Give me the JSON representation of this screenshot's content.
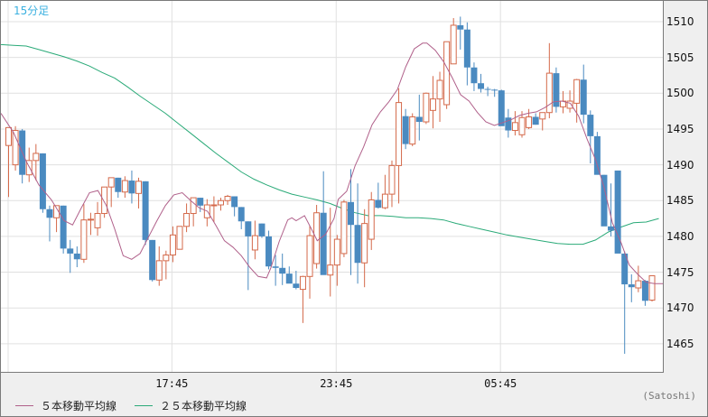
{
  "header": {
    "interval_label": "15分足"
  },
  "footer": {
    "legend": [
      {
        "label": "５本移動平均線",
        "color": "#b0608a"
      },
      {
        "label": "２５本移動平均線",
        "color": "#2aaa78"
      }
    ],
    "source": "(Satoshi)"
  },
  "colors": {
    "up": "#d4694a",
    "down": "#4a8ac0",
    "ma5": "#b0608a",
    "ma25": "#2aaa78",
    "grid": "#e0e0e0",
    "interval_label": "#3ab0e0"
  },
  "chart_data": {
    "type": "candlestick",
    "title": "15分足",
    "xlabel": "",
    "ylabel": "",
    "ylim": [
      1462.3,
      1513.0
    ],
    "y_ticks": [
      1510,
      1505,
      1500,
      1495,
      1490,
      1485,
      1480,
      1475,
      1470,
      1465
    ],
    "x_ticks": [
      {
        "label": "17:45",
        "index": 23
      },
      {
        "label": "23:45",
        "index": 47
      },
      {
        "label": "05:45",
        "index": 71
      }
    ],
    "grid": true,
    "legend_position": "bottom-left",
    "candles": [
      {
        "o": 1492.7,
        "h": 1494.2,
        "l": 1485.5,
        "c": 1495.2
      },
      {
        "o": 1490.0,
        "h": 1495.4,
        "l": 1489.2,
        "c": 1494.8
      },
      {
        "o": 1494.8,
        "h": 1495.0,
        "l": 1487.4,
        "c": 1488.6
      },
      {
        "o": 1488.6,
        "h": 1492.4,
        "l": 1487.6,
        "c": 1490.6
      },
      {
        "o": 1490.6,
        "h": 1492.9,
        "l": 1487.8,
        "c": 1491.6
      },
      {
        "o": 1491.6,
        "h": 1491.6,
        "l": 1483.3,
        "c": 1483.8
      },
      {
        "o": 1483.8,
        "h": 1484.3,
        "l": 1479.3,
        "c": 1482.6
      },
      {
        "o": 1482.6,
        "h": 1484.1,
        "l": 1480.6,
        "c": 1484.3
      },
      {
        "o": 1484.3,
        "h": 1484.3,
        "l": 1477.6,
        "c": 1478.3
      },
      {
        "o": 1478.3,
        "h": 1479.5,
        "l": 1474.9,
        "c": 1477.6
      },
      {
        "o": 1477.6,
        "h": 1478.6,
        "l": 1475.7,
        "c": 1476.8
      },
      {
        "o": 1476.8,
        "h": 1484.5,
        "l": 1476.3,
        "c": 1482.3
      },
      {
        "o": 1482.3,
        "h": 1483.3,
        "l": 1480.2,
        "c": 1482.4
      },
      {
        "o": 1481.2,
        "h": 1484.8,
        "l": 1480.1,
        "c": 1483.2
      },
      {
        "o": 1483.2,
        "h": 1486.5,
        "l": 1482.6,
        "c": 1486.9
      },
      {
        "o": 1486.9,
        "h": 1488.2,
        "l": 1484.1,
        "c": 1488.2
      },
      {
        "o": 1488.2,
        "h": 1488.2,
        "l": 1485.4,
        "c": 1486.2
      },
      {
        "o": 1486.2,
        "h": 1488.4,
        "l": 1485.4,
        "c": 1487.8
      },
      {
        "o": 1487.8,
        "h": 1489.2,
        "l": 1484.6,
        "c": 1486.0
      },
      {
        "o": 1486.0,
        "h": 1488.2,
        "l": 1483.9,
        "c": 1487.7
      },
      {
        "o": 1487.7,
        "h": 1487.7,
        "l": 1478.8,
        "c": 1479.5
      },
      {
        "o": 1479.5,
        "h": 1479.5,
        "l": 1473.7,
        "c": 1473.9
      },
      {
        "o": 1473.9,
        "h": 1478.6,
        "l": 1473.1,
        "c": 1476.6
      },
      {
        "o": 1476.6,
        "h": 1478.0,
        "l": 1474.0,
        "c": 1477.4
      },
      {
        "o": 1477.4,
        "h": 1481.4,
        "l": 1476.4,
        "c": 1480.2
      },
      {
        "o": 1478.2,
        "h": 1481.4,
        "l": 1478.2,
        "c": 1481.4
      },
      {
        "o": 1481.4,
        "h": 1484.6,
        "l": 1480.6,
        "c": 1483.2
      },
      {
        "o": 1483.2,
        "h": 1485.4,
        "l": 1481.4,
        "c": 1485.4
      },
      {
        "o": 1485.4,
        "h": 1485.4,
        "l": 1483.4,
        "c": 1484.3
      },
      {
        "o": 1482.6,
        "h": 1485.2,
        "l": 1481.4,
        "c": 1484.4
      },
      {
        "o": 1484.4,
        "h": 1485.6,
        "l": 1482.0,
        "c": 1484.4
      },
      {
        "o": 1484.4,
        "h": 1485.4,
        "l": 1483.6,
        "c": 1485.0
      },
      {
        "o": 1485.0,
        "h": 1485.8,
        "l": 1484.4,
        "c": 1485.6
      },
      {
        "o": 1485.6,
        "h": 1485.6,
        "l": 1482.8,
        "c": 1484.1
      },
      {
        "o": 1484.1,
        "h": 1484.1,
        "l": 1481.0,
        "c": 1482.1
      },
      {
        "o": 1482.1,
        "h": 1482.1,
        "l": 1472.5,
        "c": 1480.0
      },
      {
        "o": 1478.1,
        "h": 1482.2,
        "l": 1476.8,
        "c": 1480.1
      },
      {
        "o": 1481.8,
        "h": 1481.8,
        "l": 1479.8,
        "c": 1480.0
      },
      {
        "o": 1480.0,
        "h": 1480.8,
        "l": 1475.4,
        "c": 1475.8
      },
      {
        "o": 1475.8,
        "h": 1477.4,
        "l": 1473.1,
        "c": 1475.6
      },
      {
        "o": 1475.6,
        "h": 1477.6,
        "l": 1473.2,
        "c": 1474.8
      },
      {
        "o": 1474.8,
        "h": 1475.8,
        "l": 1473.6,
        "c": 1473.4
      },
      {
        "o": 1473.4,
        "h": 1475.2,
        "l": 1472.6,
        "c": 1472.8
      },
      {
        "o": 1472.6,
        "h": 1474.5,
        "l": 1467.9,
        "c": 1474.4
      },
      {
        "o": 1474.4,
        "h": 1481.5,
        "l": 1471.3,
        "c": 1480.1
      },
      {
        "o": 1476.2,
        "h": 1484.4,
        "l": 1475.5,
        "c": 1483.3
      },
      {
        "o": 1483.3,
        "h": 1489.1,
        "l": 1476.3,
        "c": 1474.6
      },
      {
        "o": 1474.6,
        "h": 1484.0,
        "l": 1471.6,
        "c": 1476.0
      },
      {
        "o": 1476.0,
        "h": 1480.2,
        "l": 1473.1,
        "c": 1479.6
      },
      {
        "o": 1477.6,
        "h": 1485.1,
        "l": 1477.1,
        "c": 1484.8
      },
      {
        "o": 1484.8,
        "h": 1489.4,
        "l": 1474.6,
        "c": 1481.6
      },
      {
        "o": 1481.6,
        "h": 1487.4,
        "l": 1473.4,
        "c": 1476.3
      },
      {
        "o": 1476.3,
        "h": 1483.8,
        "l": 1472.9,
        "c": 1481.8
      },
      {
        "o": 1479.6,
        "h": 1486.2,
        "l": 1478.1,
        "c": 1485.1
      },
      {
        "o": 1485.1,
        "h": 1487.5,
        "l": 1483.9,
        "c": 1484.0
      },
      {
        "o": 1484.0,
        "h": 1488.6,
        "l": 1483.8,
        "c": 1485.9
      },
      {
        "o": 1485.9,
        "h": 1490.6,
        "l": 1484.1,
        "c": 1489.9
      },
      {
        "o": 1489.9,
        "h": 1500.7,
        "l": 1484.6,
        "c": 1498.7
      },
      {
        "o": 1496.8,
        "h": 1497.8,
        "l": 1492.2,
        "c": 1492.9
      },
      {
        "o": 1492.9,
        "h": 1497.2,
        "l": 1492.6,
        "c": 1496.7
      },
      {
        "o": 1496.7,
        "h": 1499.8,
        "l": 1493.4,
        "c": 1496.0
      },
      {
        "o": 1496.0,
        "h": 1500.1,
        "l": 1495.7,
        "c": 1500.0
      },
      {
        "o": 1497.6,
        "h": 1502.4,
        "l": 1495.1,
        "c": 1499.2
      },
      {
        "o": 1499.2,
        "h": 1503.0,
        "l": 1496.0,
        "c": 1501.8
      },
      {
        "o": 1498.4,
        "h": 1506.6,
        "l": 1497.8,
        "c": 1507.2
      },
      {
        "o": 1504.1,
        "h": 1510.5,
        "l": 1505.1,
        "c": 1509.5
      },
      {
        "o": 1509.5,
        "h": 1510.7,
        "l": 1506.1,
        "c": 1508.9
      },
      {
        "o": 1508.9,
        "h": 1509.9,
        "l": 1501.1,
        "c": 1503.6
      },
      {
        "o": 1503.6,
        "h": 1504.3,
        "l": 1500.3,
        "c": 1501.4
      },
      {
        "o": 1501.4,
        "h": 1502.7,
        "l": 1500.1,
        "c": 1500.6
      },
      {
        "o": 1500.6,
        "h": 1500.9,
        "l": 1499.6,
        "c": 1500.5
      },
      {
        "o": 1500.5,
        "h": 1500.6,
        "l": 1499.5,
        "c": 1500.4
      },
      {
        "o": 1500.4,
        "h": 1500.5,
        "l": 1499.3,
        "c": 1495.4
      },
      {
        "o": 1496.6,
        "h": 1497.8,
        "l": 1493.8,
        "c": 1494.8
      },
      {
        "o": 1494.8,
        "h": 1497.5,
        "l": 1494.1,
        "c": 1495.9
      },
      {
        "o": 1494.2,
        "h": 1497.5,
        "l": 1493.8,
        "c": 1496.6
      },
      {
        "o": 1495.2,
        "h": 1497.8,
        "l": 1495.0,
        "c": 1496.7
      },
      {
        "o": 1496.7,
        "h": 1497.2,
        "l": 1495.6,
        "c": 1495.6
      },
      {
        "o": 1496.4,
        "h": 1496.9,
        "l": 1494.8,
        "c": 1497.3
      },
      {
        "o": 1497.3,
        "h": 1507.0,
        "l": 1496.5,
        "c": 1502.8
      },
      {
        "o": 1502.8,
        "h": 1503.6,
        "l": 1497.3,
        "c": 1498.1
      },
      {
        "o": 1498.1,
        "h": 1500.3,
        "l": 1497.2,
        "c": 1498.9
      },
      {
        "o": 1497.9,
        "h": 1500.4,
        "l": 1497.3,
        "c": 1498.9
      },
      {
        "o": 1498.6,
        "h": 1502.0,
        "l": 1495.9,
        "c": 1501.9
      },
      {
        "o": 1501.9,
        "h": 1504.0,
        "l": 1495.8,
        "c": 1497.0
      },
      {
        "o": 1497.0,
        "h": 1497.6,
        "l": 1490.2,
        "c": 1494.0
      },
      {
        "o": 1494.0,
        "h": 1494.6,
        "l": 1489.6,
        "c": 1488.6
      },
      {
        "o": 1488.6,
        "h": 1488.6,
        "l": 1486.0,
        "c": 1481.4
      },
      {
        "o": 1481.4,
        "h": 1487.4,
        "l": 1480.0,
        "c": 1480.8
      },
      {
        "o": 1489.2,
        "h": 1489.2,
        "l": 1481.6,
        "c": 1477.6
      },
      {
        "o": 1477.6,
        "h": 1477.9,
        "l": 1463.6,
        "c": 1473.3
      },
      {
        "o": 1473.3,
        "h": 1474.7,
        "l": 1470.8,
        "c": 1472.9
      },
      {
        "o": 1472.8,
        "h": 1475.9,
        "l": 1472.2,
        "c": 1473.8
      },
      {
        "o": 1473.8,
        "h": 1473.9,
        "l": 1470.3,
        "c": 1471.0
      },
      {
        "o": 1471.1,
        "h": 1474.4,
        "l": 1470.9,
        "c": 1474.5
      }
    ],
    "series": [
      {
        "name": "５本移動平均線",
        "color": "#b0608a",
        "points": [
          [
            0,
            1497.2
          ],
          [
            3,
            1494.5
          ],
          [
            6,
            1490.5
          ],
          [
            9,
            1487.2
          ],
          [
            12,
            1485.1
          ],
          [
            15,
            1482.2
          ],
          [
            17,
            1481.6
          ],
          [
            19,
            1483.9
          ],
          [
            21,
            1486.1
          ],
          [
            23,
            1486.4
          ],
          [
            25,
            1484.3
          ],
          [
            27,
            1481.0
          ],
          [
            29,
            1477.3
          ],
          [
            31,
            1476.8
          ],
          [
            33,
            1477.6
          ],
          [
            35,
            1479.9
          ],
          [
            37,
            1482.2
          ],
          [
            39,
            1484.3
          ],
          [
            41,
            1485.8
          ],
          [
            43,
            1486.1
          ],
          [
            45,
            1485.0
          ],
          [
            47,
            1484.0
          ],
          [
            49,
            1483.5
          ],
          [
            51,
            1481.5
          ],
          [
            53,
            1479.4
          ],
          [
            55,
            1478.5
          ],
          [
            57,
            1477.3
          ],
          [
            59,
            1475.7
          ],
          [
            61,
            1474.4
          ],
          [
            63,
            1474.2
          ],
          [
            64,
            1475.6
          ],
          [
            66,
            1479.3
          ],
          [
            68,
            1482.3
          ],
          [
            69,
            1482.6
          ],
          [
            70,
            1482.2
          ],
          [
            72,
            1482.9
          ],
          [
            74,
            1480.6
          ],
          [
            75,
            1479.4
          ],
          [
            77,
            1480.3
          ],
          [
            79,
            1482.5
          ],
          [
            80,
            1485.2
          ],
          [
            82,
            1486.3
          ],
          [
            84,
            1489.9
          ],
          [
            86,
            1492.5
          ],
          [
            88,
            1495.6
          ],
          [
            90,
            1497.4
          ],
          [
            92,
            1498.8
          ],
          [
            94,
            1500.5
          ],
          [
            96,
            1503.7
          ],
          [
            98,
            1506.2
          ],
          [
            100,
            1507.0
          ],
          [
            101,
            1507.0
          ],
          [
            103,
            1506.0
          ],
          [
            105,
            1504.4
          ],
          [
            107,
            1502.2
          ],
          [
            109,
            1499.8
          ],
          [
            111,
            1498.9
          ],
          [
            113,
            1497.3
          ],
          [
            115,
            1496.0
          ],
          [
            117,
            1495.5
          ],
          [
            119,
            1495.9
          ],
          [
            121,
            1496.3
          ],
          [
            123,
            1496.9
          ],
          [
            125,
            1497.2
          ],
          [
            127,
            1497.4
          ],
          [
            129,
            1498.0
          ],
          [
            131,
            1498.8
          ],
          [
            133,
            1498.9
          ],
          [
            135,
            1498.6
          ],
          [
            137,
            1496.8
          ],
          [
            139,
            1493.6
          ],
          [
            141,
            1490.7
          ],
          [
            143,
            1486.9
          ],
          [
            145,
            1481.9
          ],
          [
            147,
            1479.2
          ],
          [
            149,
            1476.0
          ],
          [
            151,
            1474.7
          ],
          [
            153,
            1473.6
          ],
          [
            155,
            1473.4
          ],
          [
            157,
            1473.4
          ]
        ]
      },
      {
        "name": "２５本移動平均線",
        "color": "#2aaa78",
        "points": [
          [
            0,
            1506.8
          ],
          [
            3,
            1506.7
          ],
          [
            6,
            1506.6
          ],
          [
            9,
            1506.1
          ],
          [
            12,
            1505.6
          ],
          [
            15,
            1505.1
          ],
          [
            18,
            1504.5
          ],
          [
            21,
            1503.8
          ],
          [
            24,
            1502.9
          ],
          [
            27,
            1502.1
          ],
          [
            30,
            1500.9
          ],
          [
            33,
            1499.6
          ],
          [
            36,
            1498.4
          ],
          [
            39,
            1497.2
          ],
          [
            42,
            1495.8
          ],
          [
            45,
            1494.4
          ],
          [
            48,
            1493.0
          ],
          [
            51,
            1491.6
          ],
          [
            54,
            1490.3
          ],
          [
            57,
            1489.0
          ],
          [
            60,
            1488.0
          ],
          [
            63,
            1487.2
          ],
          [
            66,
            1486.5
          ],
          [
            69,
            1485.9
          ],
          [
            72,
            1485.5
          ],
          [
            75,
            1485.1
          ],
          [
            78,
            1484.6
          ],
          [
            81,
            1483.9
          ],
          [
            84,
            1483.3
          ],
          [
            87,
            1482.9
          ],
          [
            90,
            1482.9
          ],
          [
            93,
            1482.8
          ],
          [
            96,
            1482.6
          ],
          [
            99,
            1482.6
          ],
          [
            102,
            1482.5
          ],
          [
            105,
            1482.3
          ],
          [
            108,
            1481.8
          ],
          [
            111,
            1481.4
          ],
          [
            114,
            1481.0
          ],
          [
            117,
            1480.6
          ],
          [
            120,
            1480.2
          ],
          [
            123,
            1479.9
          ],
          [
            126,
            1479.6
          ],
          [
            129,
            1479.3
          ],
          [
            132,
            1479.0
          ],
          [
            135,
            1478.9
          ],
          [
            138,
            1478.9
          ],
          [
            141,
            1479.5
          ],
          [
            144,
            1480.6
          ],
          [
            147,
            1481.3
          ],
          [
            150,
            1481.9
          ],
          [
            153,
            1482.0
          ],
          [
            156,
            1482.5
          ]
        ]
      }
    ]
  }
}
